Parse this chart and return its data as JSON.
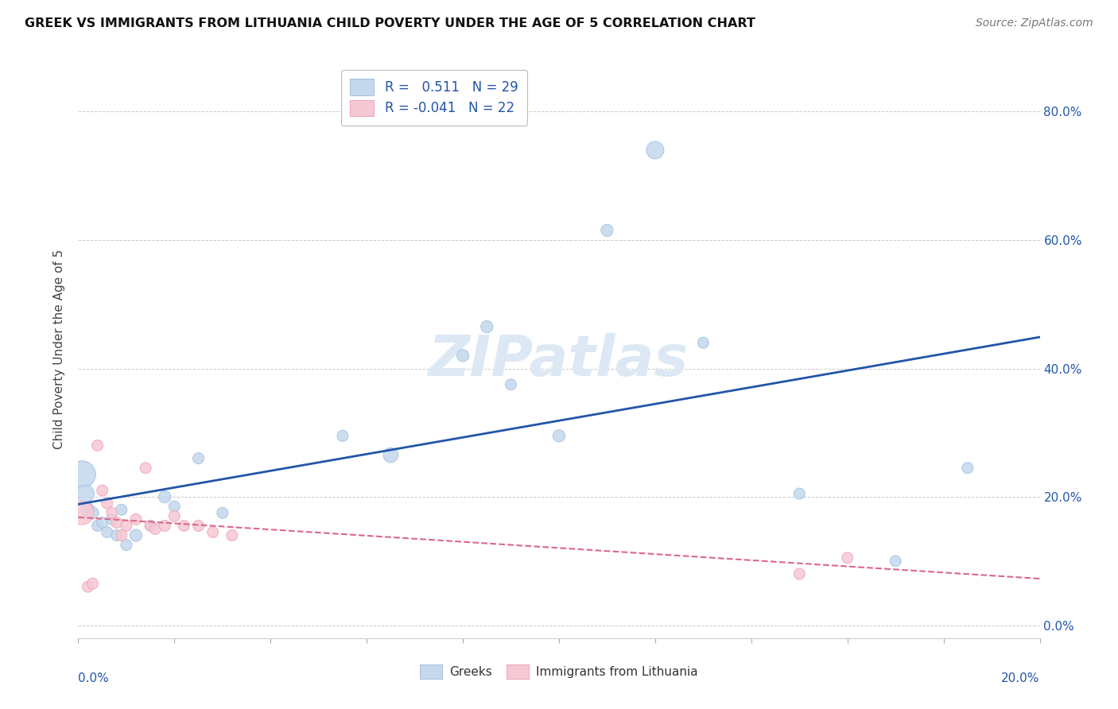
{
  "title": "GREEK VS IMMIGRANTS FROM LITHUANIA CHILD POVERTY UNDER THE AGE OF 5 CORRELATION CHART",
  "source": "Source: ZipAtlas.com",
  "ylabel": "Child Poverty Under the Age of 5",
  "legend_label1": "Greeks",
  "legend_label2": "Immigrants from Lithuania",
  "R1": 0.511,
  "N1": 29,
  "R2": -0.041,
  "N2": 22,
  "blue_color": "#a8c4e0",
  "blue_face_color": "#c5d8ee",
  "pink_color": "#f0a8b8",
  "pink_face_color": "#f5c8d4",
  "blue_line_color": "#2255aa",
  "pink_line_color": "#dd6688",
  "xlim": [
    0,
    0.2
  ],
  "ylim": [
    -0.02,
    0.88
  ],
  "yticks": [
    0.0,
    0.2,
    0.4,
    0.6,
    0.8
  ],
  "ytick_labels": [
    "0.0%",
    "20.0%",
    "40.0%",
    "60.0%",
    "80.0%"
  ],
  "greeks_x": [
    0.0008,
    0.0015,
    0.002,
    0.003,
    0.004,
    0.005,
    0.006,
    0.007,
    0.008,
    0.009,
    0.01,
    0.012,
    0.015,
    0.018,
    0.02,
    0.025,
    0.03,
    0.055,
    0.065,
    0.08,
    0.085,
    0.09,
    0.1,
    0.11,
    0.12,
    0.13,
    0.15,
    0.17,
    0.185
  ],
  "greeks_y": [
    0.235,
    0.205,
    0.18,
    0.175,
    0.155,
    0.16,
    0.145,
    0.165,
    0.14,
    0.18,
    0.125,
    0.14,
    0.155,
    0.2,
    0.185,
    0.26,
    0.175,
    0.295,
    0.265,
    0.42,
    0.465,
    0.375,
    0.295,
    0.615,
    0.74,
    0.44,
    0.205,
    0.1,
    0.245
  ],
  "greeks_size": [
    600,
    250,
    150,
    120,
    100,
    100,
    100,
    100,
    100,
    100,
    100,
    120,
    100,
    120,
    100,
    100,
    100,
    100,
    180,
    120,
    120,
    100,
    120,
    120,
    250,
    100,
    100,
    100,
    100
  ],
  "lithuania_x": [
    0.0008,
    0.002,
    0.003,
    0.004,
    0.005,
    0.006,
    0.007,
    0.008,
    0.009,
    0.01,
    0.012,
    0.014,
    0.015,
    0.016,
    0.018,
    0.02,
    0.022,
    0.025,
    0.028,
    0.032,
    0.15,
    0.16
  ],
  "lithuania_y": [
    0.175,
    0.06,
    0.065,
    0.28,
    0.21,
    0.19,
    0.175,
    0.16,
    0.14,
    0.155,
    0.165,
    0.245,
    0.155,
    0.15,
    0.155,
    0.17,
    0.155,
    0.155,
    0.145,
    0.14,
    0.08,
    0.105
  ],
  "lithuania_size": [
    450,
    100,
    100,
    100,
    100,
    100,
    100,
    100,
    100,
    100,
    100,
    100,
    100,
    100,
    100,
    100,
    100,
    100,
    100,
    100,
    100,
    100
  ],
  "watermark": "ZIPatlas",
  "watermark_color": "#dde8f5"
}
